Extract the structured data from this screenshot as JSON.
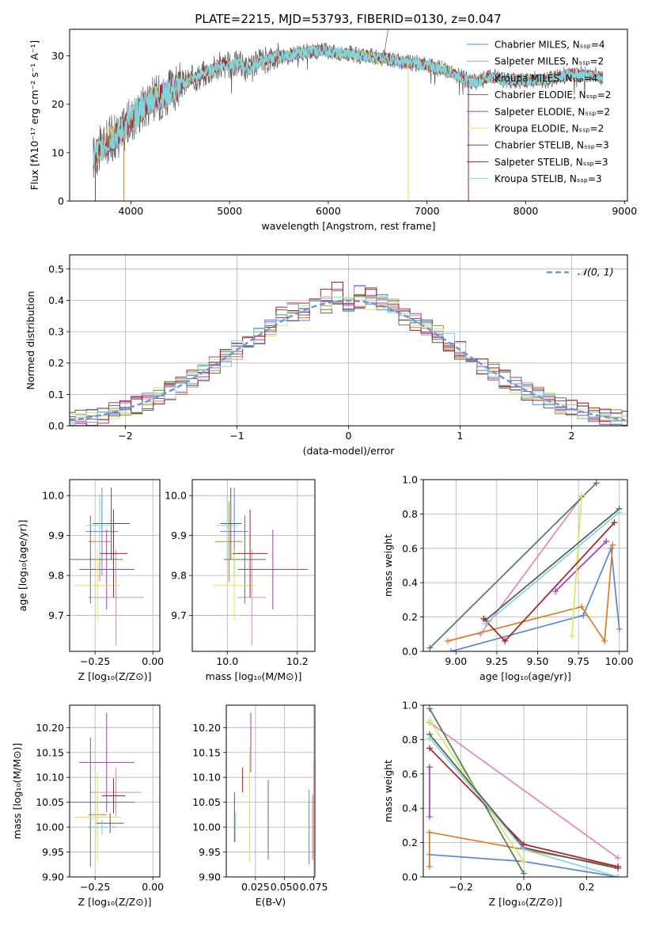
{
  "title": "PLATE=2215, MJD=53793, FIBERID=0130, z=0.047",
  "colors": {
    "chabrier_miles": "#5b86d6",
    "salpeter_miles": "#e584bf",
    "kroupa_miles": "#de7a24",
    "chabrier_elodie": "#4f7b57",
    "salpeter_elodie": "#a03cba",
    "kroupa_elodie": "#d3ea5b",
    "chabrier_stelib": "#555555",
    "salpeter_stelib": "#a81f24",
    "kroupa_stelib": "#7fd6de",
    "gauss": "#6f96d9"
  },
  "chart_data": [
    {
      "id": "spectrum",
      "type": "line",
      "xlabel": "wavelength [Angstrom, rest frame]",
      "ylabel": "Flux [fλ10⁻¹⁷ erg cm⁻² s⁻¹ A⁻¹]",
      "xlim": [
        3380,
        9030
      ],
      "ylim": [
        0,
        35.5
      ],
      "xticks": [
        4000,
        5000,
        6000,
        7000,
        8000,
        9000
      ],
      "yticks": [
        0,
        10,
        20,
        30
      ],
      "legend_position": "right",
      "legend": [
        "Chabrier MILES, Nₛₛₚ=4",
        "Salpeter MILES, Nₛₛₚ=2",
        "Kroupa MILES, Nₛₛₚ=4",
        "Chabrier ELODIE, Nₛₛₚ=2",
        "Salpeter ELODIE, Nₛₛₚ=2",
        "Kroupa ELODIE, Nₛₛₚ=2",
        "Chabrier STELIB, Nₛₛₚ=3",
        "Salpeter STELIB, Nₛₛₚ=3",
        "Kroupa STELIB, Nₛₛₚ=3"
      ],
      "x": [
        3620,
        3700,
        3800,
        3900,
        4000,
        4100,
        4200,
        4300,
        4400,
        4500,
        4600,
        4700,
        4800,
        4900,
        5000,
        5100,
        5200,
        5300,
        5400,
        5500,
        5600,
        5700,
        5800,
        5900,
        6000,
        6100,
        6200,
        6300,
        6400,
        6500,
        6600,
        6700,
        6800,
        6900,
        7000,
        7100,
        7200,
        7300,
        7400,
        7500,
        7600,
        7700,
        7800,
        7900,
        8000,
        8100,
        8200,
        8300,
        8400,
        8500,
        8600,
        8700,
        8780
      ],
      "y": [
        9,
        11,
        13,
        14,
        17,
        19,
        21,
        21.5,
        22.5,
        24,
        25,
        26,
        27,
        28,
        28,
        28.5,
        27,
        28.5,
        29.5,
        30,
        30,
        30.5,
        31,
        31,
        31,
        30.5,
        30.5,
        30,
        30,
        29.5,
        29.5,
        29,
        28.5,
        28.5,
        28,
        27.5,
        27,
        26,
        25,
        24.5,
        25.5,
        25.5,
        25,
        25,
        25,
        25,
        25,
        25.5,
        26,
        26.5,
        26,
        26,
        25.5
      ]
    },
    {
      "id": "residuals",
      "type": "histogram",
      "xlabel": "(data-model)/error",
      "ylabel": "Normed distribution",
      "xlim": [
        -2.5,
        2.5
      ],
      "ylim": [
        0,
        0.545
      ],
      "xticks": [
        -2,
        -1,
        0,
        1,
        2
      ],
      "yticks": [
        0.0,
        0.1,
        0.2,
        0.3,
        0.4,
        0.5
      ],
      "legend_position": "top-right",
      "legend": [
        "𝒩(0, 1)"
      ],
      "gaussian": {
        "mean": 0,
        "std": 1
      }
    },
    {
      "id": "age_vs_Z",
      "type": "scatter",
      "xlabel": "Z [log₁₀(Z/Z⊙)]",
      "ylabel": "age  [log₁₀(age/yr)]",
      "xlim": [
        -0.36,
        0.03
      ],
      "ylim": [
        9.61,
        10.04
      ],
      "xticks": [
        -0.25,
        0.0
      ],
      "yticks": [
        9.7,
        9.8,
        9.9,
        10.0
      ],
      "points": [
        {
          "series": "chabrier_miles",
          "x": -0.22,
          "y": 9.91,
          "xerr": 0.07,
          "yerr": 0.11
        },
        {
          "series": "salpeter_miles",
          "x": -0.16,
          "y": 9.745,
          "xerr": 0.12,
          "yerr": 0.12
        },
        {
          "series": "kroupa_miles",
          "x": -0.23,
          "y": 9.885,
          "xerr": 0.05,
          "yerr": 0.1
        },
        {
          "series": "chabrier_elodie",
          "x": -0.27,
          "y": 9.84,
          "xerr": 0.14,
          "yerr": 0.11
        },
        {
          "series": "salpeter_elodie",
          "x": -0.2,
          "y": 9.815,
          "xerr": 0.12,
          "yerr": 0.1
        },
        {
          "series": "kroupa_elodie",
          "x": -0.24,
          "y": 9.775,
          "xerr": 0.1,
          "yerr": 0.09
        },
        {
          "series": "chabrier_stelib",
          "x": -0.18,
          "y": 9.93,
          "xerr": 0.08,
          "yerr": 0.09
        },
        {
          "series": "salpeter_stelib",
          "x": -0.17,
          "y": 9.855,
          "xerr": 0.06,
          "yerr": 0.11
        },
        {
          "series": "kroupa_stelib",
          "x": -0.23,
          "y": 9.925,
          "xerr": 0.06,
          "yerr": 0.08
        }
      ]
    },
    {
      "id": "age_vs_mass",
      "type": "scatter",
      "xlabel": "mass [log₁₀(M/M⊙)]",
      "ylabel": "",
      "xlim": [
        9.9,
        10.25
      ],
      "ylim": [
        9.61,
        10.04
      ],
      "xticks": [
        10.0,
        10.2
      ],
      "yticks": [
        9.7,
        9.8,
        9.9,
        10.0
      ],
      "points": [
        {
          "series": "chabrier_miles",
          "x": 10.02,
          "y": 9.91,
          "xerr": 0.04,
          "yerr": 0.11
        },
        {
          "series": "salpeter_miles",
          "x": 10.07,
          "y": 9.745,
          "xerr": 0.04,
          "yerr": 0.12
        },
        {
          "series": "kroupa_miles",
          "x": 10.005,
          "y": 9.885,
          "xerr": 0.04,
          "yerr": 0.1
        },
        {
          "series": "chabrier_elodie",
          "x": 10.05,
          "y": 9.84,
          "xerr": 0.06,
          "yerr": 0.11
        },
        {
          "series": "salpeter_elodie",
          "x": 10.13,
          "y": 9.815,
          "xerr": 0.1,
          "yerr": 0.1
        },
        {
          "series": "kroupa_elodie",
          "x": 10.02,
          "y": 9.775,
          "xerr": 0.06,
          "yerr": 0.09
        },
        {
          "series": "chabrier_stelib",
          "x": 10.01,
          "y": 9.93,
          "xerr": 0.03,
          "yerr": 0.09
        },
        {
          "series": "salpeter_stelib",
          "x": 10.065,
          "y": 9.855,
          "xerr": 0.05,
          "yerr": 0.11
        },
        {
          "series": "kroupa_stelib",
          "x": 10.0,
          "y": 9.925,
          "xerr": 0.03,
          "yerr": 0.08
        }
      ]
    },
    {
      "id": "mass_weight_vs_age",
      "type": "line",
      "xlabel": "age  [log₁₀(age/yr)]",
      "ylabel": "mass weight",
      "xlim": [
        8.8,
        10.05
      ],
      "ylim": [
        0.0,
        1.0
      ],
      "xticks": [
        9.0,
        9.25,
        9.5,
        9.75,
        10.0
      ],
      "yticks": [
        0.0,
        0.2,
        0.4,
        0.6,
        0.8,
        1.0
      ],
      "series": [
        {
          "key": "chabrier_miles",
          "x": [
            8.97,
            9.78,
            9.95,
            10.0
          ],
          "y": [
            0.0,
            0.21,
            0.6,
            0.13
          ]
        },
        {
          "key": "salpeter_miles",
          "x": [
            9.15,
            9.77
          ],
          "y": [
            0.1,
            0.9
          ]
        },
        {
          "key": "kroupa_miles",
          "x": [
            8.95,
            9.77,
            9.91,
            9.96
          ],
          "y": [
            0.06,
            0.26,
            0.06,
            0.62
          ]
        },
        {
          "key": "chabrier_elodie",
          "x": [
            8.84,
            9.86
          ],
          "y": [
            0.02,
            0.98
          ]
        },
        {
          "key": "salpeter_elodie",
          "x": [
            9.61,
            9.92
          ],
          "y": [
            0.35,
            0.64
          ]
        },
        {
          "key": "kroupa_elodie",
          "x": [
            9.71,
            9.77
          ],
          "y": [
            0.09,
            0.91
          ]
        },
        {
          "key": "chabrier_stelib",
          "x": [
            9.18,
            10.0
          ],
          "y": [
            0.18,
            0.83
          ]
        },
        {
          "key": "salpeter_stelib",
          "x": [
            9.17,
            9.3,
            9.97
          ],
          "y": [
            0.19,
            0.06,
            0.75
          ]
        },
        {
          "key": "kroupa_stelib",
          "x": [
            9.18,
            10.0
          ],
          "y": [
            0.16,
            0.81
          ]
        }
      ]
    },
    {
      "id": "mass_vs_Z",
      "type": "scatter",
      "xlabel": "Z [log₁₀(Z/Z⊙)]",
      "ylabel": "mass [log₁₀(M/M⊙)]",
      "xlim": [
        -0.36,
        0.03
      ],
      "ylim": [
        9.9,
        10.245
      ],
      "xticks": [
        -0.25,
        0.0
      ],
      "yticks": [
        9.9,
        9.95,
        10.0,
        10.05,
        10.1,
        10.15,
        10.2
      ],
      "points": [
        {
          "series": "chabrier_miles",
          "x": -0.22,
          "y": 10.0,
          "xerr": 0.06,
          "yerr": 0.015
        },
        {
          "series": "salpeter_miles",
          "x": -0.16,
          "y": 10.07,
          "xerr": 0.11,
          "yerr": 0.05
        },
        {
          "series": "kroupa_miles",
          "x": -0.24,
          "y": 10.025,
          "xerr": 0.04,
          "yerr": 0.04
        },
        {
          "series": "chabrier_elodie",
          "x": -0.27,
          "y": 10.05,
          "xerr": 0.19,
          "yerr": 0.13
        },
        {
          "series": "salpeter_elodie",
          "x": -0.2,
          "y": 10.13,
          "xerr": 0.12,
          "yerr": 0.1
        },
        {
          "series": "kroupa_elodie",
          "x": -0.24,
          "y": 10.02,
          "xerr": 0.1,
          "yerr": 0.09
        },
        {
          "series": "chabrier_stelib",
          "x": -0.185,
          "y": 10.008,
          "xerr": 0.06,
          "yerr": 0.02
        },
        {
          "series": "salpeter_stelib",
          "x": -0.17,
          "y": 10.063,
          "xerr": 0.05,
          "yerr": 0.035
        },
        {
          "series": "kroupa_stelib",
          "x": -0.22,
          "y": 10.0,
          "xerr": 0.05,
          "yerr": 0.015
        }
      ]
    },
    {
      "id": "mass_vs_EBV",
      "type": "errorbar",
      "xlabel": "E(B-V)",
      "ylabel": "",
      "xlim": [
        0.0,
        0.076
      ],
      "ylim": [
        9.9,
        10.245
      ],
      "xticks": [
        0.025,
        0.05,
        0.075
      ],
      "yticks": [
        9.9,
        9.95,
        10.0,
        10.05,
        10.1,
        10.15,
        10.2
      ],
      "points": [
        {
          "series": "chabrier_miles",
          "x": 0.071,
          "y": 10.0,
          "yerr": 0.075
        },
        {
          "series": "salpeter_miles",
          "x": 0.075,
          "y": 10.03,
          "yerr": 0.1
        },
        {
          "series": "kroupa_miles",
          "x": 0.074,
          "y": 10.0,
          "yerr": 0.065
        },
        {
          "series": "chabrier_elodie",
          "x": 0.036,
          "y": 10.015,
          "yerr": 0.08
        },
        {
          "series": "salpeter_elodie",
          "x": 0.021,
          "y": 10.17,
          "yerr": 0.06
        },
        {
          "series": "kroupa_elodie",
          "x": 0.02,
          "y": 10.045,
          "yerr": 0.115
        },
        {
          "series": "chabrier_stelib",
          "x": 0.007,
          "y": 10.02,
          "yerr": 0.05
        },
        {
          "series": "salpeter_stelib",
          "x": 0.014,
          "y": 10.095,
          "yerr": 0.025
        },
        {
          "series": "kroupa_stelib",
          "x": 0.008,
          "y": 10.0,
          "yerr": 0.03
        }
      ]
    },
    {
      "id": "mass_weight_vs_Z",
      "type": "line",
      "xlabel": "Z [log₁₀(Z/Z⊙)]",
      "ylabel": "mass weight",
      "xlim": [
        -0.32,
        0.33
      ],
      "ylim": [
        0.0,
        1.0
      ],
      "xticks": [
        -0.2,
        0.0,
        0.2
      ],
      "yticks": [
        0.0,
        0.2,
        0.4,
        0.6,
        0.8,
        1.0
      ],
      "series": [
        {
          "key": "chabrier_miles",
          "x": [
            -0.3,
            0.0,
            0.3
          ],
          "y": [
            0.13,
            0.09,
            0.0
          ]
        },
        {
          "key": "salpeter_miles",
          "x": [
            -0.3,
            0.3
          ],
          "y": [
            0.9,
            0.11
          ]
        },
        {
          "key": "kroupa_miles",
          "x": [
            -0.3,
            -0.3,
            0.3
          ],
          "y": [
            0.06,
            0.26,
            0.06
          ]
        },
        {
          "key": "chabrier_elodie",
          "x": [
            -0.3,
            0.0
          ],
          "y": [
            0.98,
            0.02
          ]
        },
        {
          "key": "salpeter_elodie",
          "x": [
            -0.3,
            -0.3
          ],
          "y": [
            0.35,
            0.64
          ]
        },
        {
          "key": "kroupa_elodie",
          "x": [
            -0.3,
            0.0
          ],
          "y": [
            0.91,
            0.09
          ]
        },
        {
          "key": "chabrier_stelib",
          "x": [
            -0.3,
            0.0,
            0.3
          ],
          "y": [
            0.83,
            0.17,
            0.05
          ]
        },
        {
          "key": "salpeter_stelib",
          "x": [
            -0.3,
            0.0,
            0.3
          ],
          "y": [
            0.75,
            0.19,
            0.06
          ]
        },
        {
          "key": "kroupa_stelib",
          "x": [
            -0.3,
            0.0,
            0.3
          ],
          "y": [
            0.81,
            0.16,
            0.0
          ]
        }
      ]
    }
  ]
}
